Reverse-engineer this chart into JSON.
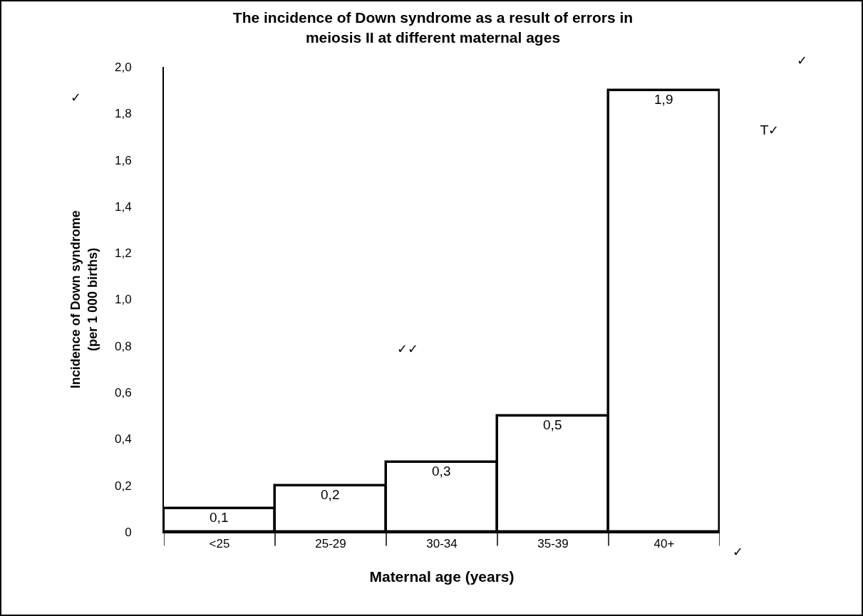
{
  "chart_data": {
    "type": "bar",
    "title": "The incidence of Down syndrome as a result of errors in\nmeiosis II at different maternal ages",
    "xlabel": "Maternal age (years)",
    "ylabel": "Incidence of Down syndrome\n(per 1 000 births)",
    "categories": [
      "<25",
      "25-29",
      "30-34",
      "35-39",
      "40+"
    ],
    "values": [
      0.1,
      0.2,
      0.3,
      0.5,
      1.9
    ],
    "value_labels": [
      "0,1",
      "0,2",
      "0,3",
      "0,5",
      "1,9"
    ],
    "color": "#ffffff",
    "ylim": [
      0,
      2
    ],
    "yticks": [
      0,
      {
        "value": 0.2,
        "label": "0,2"
      },
      {
        "value": 0.4,
        "label": "0,4"
      },
      {
        "value": 0.6,
        "label": "0,6"
      },
      {
        "value": 0.8,
        "label": "0,8"
      },
      {
        "value": 1,
        "label": "1,0"
      },
      {
        "value": 1.2,
        "label": "1,2"
      },
      {
        "value": 1.4,
        "label": "1,4"
      },
      {
        "value": 1.6,
        "label": "1,6"
      },
      {
        "value": 1.8,
        "label": "1,8"
      },
      {
        "value": 2,
        "label": "2,0"
      }
    ],
    "grid": false,
    "annotations": [
      "✓",
      "✓",
      "T✓",
      "✓✓",
      "✓"
    ]
  }
}
